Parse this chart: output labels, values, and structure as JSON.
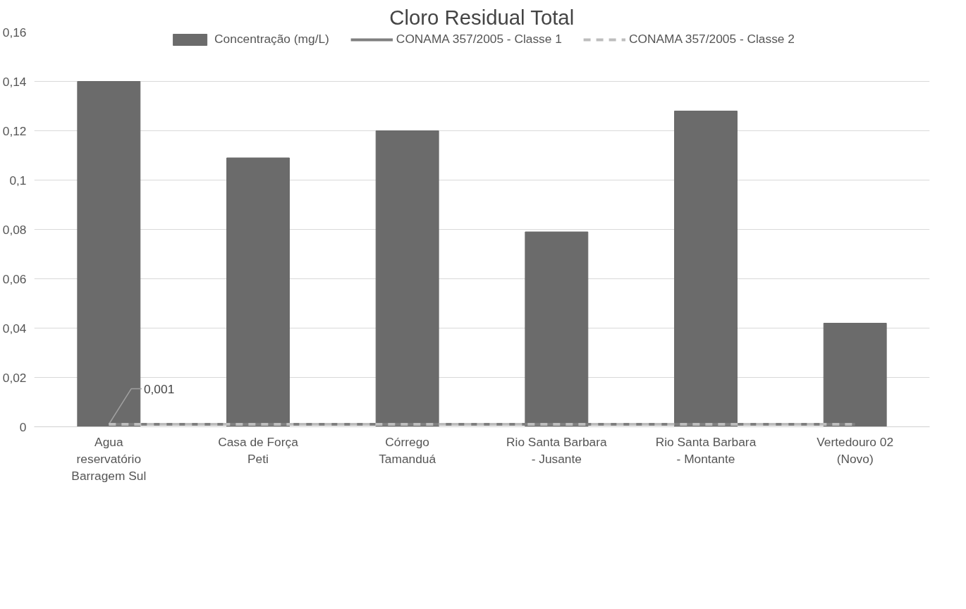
{
  "chart_data": {
    "type": "bar",
    "title": "Cloro Residual Total",
    "categories": [
      "Agua\nreservatório\nBarragem Sul",
      "Casa de Força\nPeti",
      "Córrego\nTamanduá",
      "Rio Santa Barbara\n- Jusante",
      "Rio Santa Barbara\n- Montante",
      "Vertedouro 02\n(Novo)"
    ],
    "series": [
      {
        "name": "Concentração (mg/L)",
        "color": "#6b6b6b",
        "values": [
          0.14,
          0.109,
          0.12,
          0.079,
          0.128,
          0.042
        ]
      },
      {
        "name": "CONAMA 357/2005 - Classe 1",
        "type": "line",
        "line_style": "solid",
        "color": "#7f7f7f",
        "values": [
          0.001,
          0.001,
          0.001,
          0.001,
          0.001,
          0.001
        ],
        "value_labels": [
          "0,001",
          null,
          null,
          null,
          null,
          null
        ]
      },
      {
        "name": "CONAMA 357/2005 - Classe 2",
        "type": "line",
        "line_style": "dashed",
        "color": "#bdbdbd",
        "values": [
          0.001,
          0.001,
          0.001,
          0.001,
          0.001,
          0.001
        ]
      }
    ],
    "ylim": [
      0,
      0.16
    ],
    "yticks": [
      0,
      {
        "value": 0.02,
        "label": "0,02"
      },
      {
        "value": 0.04,
        "label": "0,04"
      },
      {
        "value": 0.06,
        "label": "0,06"
      },
      {
        "value": 0.08,
        "label": "0,08"
      },
      {
        "value": 0.1,
        "label": "0,1"
      },
      {
        "value": 0.12,
        "label": "0,12"
      },
      {
        "value": 0.14,
        "label": "0,14"
      },
      {
        "value": 0.16,
        "label": "0,16"
      }
    ],
    "grid": "y",
    "legend": "top",
    "marker": "none"
  }
}
